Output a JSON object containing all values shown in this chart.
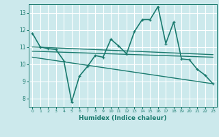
{
  "xlabel": "Humidex (Indice chaleur)",
  "ylabel": "",
  "background_color": "#cce9ec",
  "grid_color": "#ffffff",
  "line_color": "#1a7a6e",
  "xlim": [
    -0.5,
    23.5
  ],
  "ylim": [
    7.5,
    13.5
  ],
  "xticks": [
    0,
    1,
    2,
    3,
    4,
    5,
    6,
    7,
    8,
    9,
    10,
    11,
    12,
    13,
    14,
    15,
    16,
    17,
    18,
    19,
    20,
    21,
    22,
    23
  ],
  "yticks": [
    8,
    9,
    10,
    11,
    12,
    13
  ],
  "series": [
    {
      "x": [
        0,
        1,
        2,
        3,
        4,
        5,
        6,
        7,
        8,
        9,
        10,
        11,
        12,
        13,
        14,
        15,
        16,
        17,
        18,
        19,
        20,
        21,
        22,
        23
      ],
      "y": [
        11.8,
        11.0,
        10.9,
        10.85,
        10.2,
        7.8,
        9.3,
        9.85,
        10.5,
        10.4,
        11.45,
        11.05,
        10.6,
        11.9,
        12.6,
        12.6,
        13.35,
        11.2,
        12.45,
        10.3,
        10.25,
        9.7,
        9.35,
        8.85
      ],
      "marker": "+",
      "lw": 1.2
    },
    {
      "x": [
        0,
        23
      ],
      "y": [
        11.0,
        10.55
      ],
      "marker": null,
      "lw": 1.0
    },
    {
      "x": [
        0,
        23
      ],
      "y": [
        10.75,
        10.4
      ],
      "marker": null,
      "lw": 1.0
    },
    {
      "x": [
        0,
        23
      ],
      "y": [
        10.4,
        8.85
      ],
      "marker": null,
      "lw": 1.0
    }
  ]
}
